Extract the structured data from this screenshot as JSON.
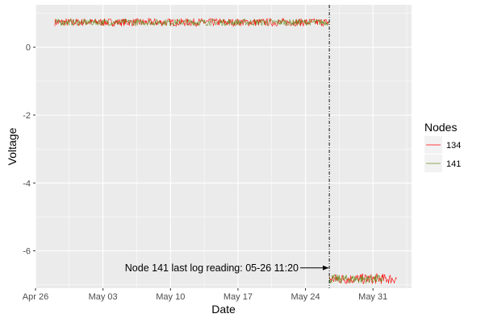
{
  "chart_data": {
    "type": "line",
    "title": "",
    "xlabel": "Date",
    "ylabel": "Voltage",
    "x_ticks": [
      "Apr 26",
      "May 03",
      "May 10",
      "May 17",
      "May 24",
      "May 31"
    ],
    "x_tick_dates": [
      "2016-04-26",
      "2016-05-03",
      "2016-05-10",
      "2016-05-17",
      "2016-05-24",
      "2016-05-31"
    ],
    "xlim": [
      "2016-04-26",
      "2016-06-04"
    ],
    "y_ticks": [
      0,
      -2,
      -4,
      -6
    ],
    "ylim": [
      -7.1,
      1.25
    ],
    "grid": true,
    "legend": {
      "title": "Nodes",
      "placement": "right",
      "entries": [
        "134",
        "141"
      ]
    },
    "series": [
      {
        "name": "134",
        "color": "#ff0000",
        "segments": [
          {
            "start": "2016-04-28",
            "end": "2016-05-26 11:20",
            "mean": 0.73,
            "min": 0.62,
            "max": 0.85
          },
          {
            "start": "2016-05-26 11:20",
            "end": "2016-06-02 12:00",
            "mean": -6.83,
            "min": -6.98,
            "max": -6.67
          }
        ]
      },
      {
        "name": "141",
        "color": "#6b8e23",
        "segments": [
          {
            "start": "2016-04-28",
            "end": "2016-05-26 11:20",
            "mean": 0.73,
            "min": 0.64,
            "max": 0.83
          },
          {
            "start": "2016-05-26 11:20",
            "end": "2016-06-01 00:00",
            "mean": -6.83,
            "min": -6.96,
            "max": -6.7
          }
        ]
      }
    ],
    "vline": {
      "x": "2016-05-26 11:20",
      "style": "dashed",
      "color": "#000000"
    },
    "annotation": {
      "text": "Node 141 last log reading: 05-26 11:20",
      "arrow_to": {
        "x": "2016-05-26 11:20",
        "y": -6.5
      }
    }
  }
}
